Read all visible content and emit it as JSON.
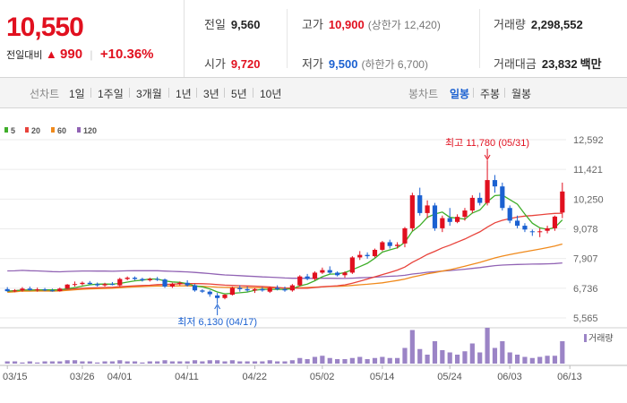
{
  "quote": {
    "price": "10,550",
    "change_label": "전일대비",
    "change_arrow": "▲",
    "change": "990",
    "change_pct": "+10.36%",
    "prev_label": "전일",
    "prev": "9,560",
    "open_label": "시가",
    "open": "9,720",
    "high_label": "고가",
    "high": "10,900",
    "upper_limit": "(상한가 12,420)",
    "low_label": "저가",
    "low": "9,500",
    "lower_limit": "(하한가 6,700)",
    "volume_label": "거래량",
    "volume": "2,298,552",
    "amount_label": "거래대금",
    "amount": "23,832",
    "amount_unit": "백만"
  },
  "tabs": {
    "line_chart": "선차트",
    "periods": [
      "1일",
      "1주일",
      "3개월",
      "1년",
      "3년",
      "5년",
      "10년"
    ],
    "candle_chart": "봉차트",
    "candle_periods": [
      "일봉",
      "주봉",
      "월봉"
    ],
    "active_candle_period": "일봉"
  },
  "colors": {
    "up": "#e1101f",
    "down": "#1b61d1",
    "ma5": "#3fae2a",
    "ma20": "#e8433b",
    "ma60": "#f08a1c",
    "ma120": "#9163b4",
    "volume": "#9b84c6"
  },
  "chart_data": {
    "type": "candlestick",
    "legend": [
      "5",
      "20",
      "60",
      "120"
    ],
    "ylim": [
      5565,
      12592
    ],
    "y_ticks": [
      "12,592",
      "11,421",
      "10,250",
      "9,078",
      "7,907",
      "6,736",
      "5,565"
    ],
    "x_ticks": [
      "03/15",
      "03/26",
      "04/01",
      "04/11",
      "04/22",
      "05/02",
      "05/14",
      "05/24",
      "06/03",
      "06/13"
    ],
    "x_tick_index": [
      0,
      10,
      15,
      24,
      33,
      42,
      50,
      59,
      67,
      75
    ],
    "annotations": {
      "high": {
        "text": "최고 11,780 (05/31)",
        "index": 64,
        "value": 11780
      },
      "low": {
        "text": "최저 6,130 (04/17)",
        "index": 28,
        "value": 6130
      }
    },
    "volume_label": "거래량",
    "candles": [
      [
        6700,
        6780,
        6600,
        6620
      ],
      [
        6620,
        6700,
        6580,
        6650
      ],
      [
        6650,
        6780,
        6600,
        6720
      ],
      [
        6720,
        6800,
        6640,
        6660
      ],
      [
        6660,
        6760,
        6600,
        6690
      ],
      [
        6690,
        6750,
        6620,
        6650
      ],
      [
        6650,
        6720,
        6600,
        6640
      ],
      [
        6620,
        6760,
        6600,
        6720
      ],
      [
        6720,
        6900,
        6700,
        6880
      ],
      [
        6880,
        7000,
        6800,
        6900
      ],
      [
        6900,
        7000,
        6850,
        6950
      ],
      [
        6950,
        7020,
        6880,
        6900
      ],
      [
        6900,
        6960,
        6800,
        6850
      ],
      [
        6850,
        6950,
        6800,
        6900
      ],
      [
        6900,
        6980,
        6850,
        6880
      ],
      [
        6850,
        7150,
        6800,
        7100
      ],
      [
        7100,
        7200,
        7050,
        7150
      ],
      [
        7150,
        7200,
        7050,
        7100
      ],
      [
        7100,
        7150,
        7000,
        7050
      ],
      [
        7050,
        7150,
        7000,
        7100
      ],
      [
        7100,
        7180,
        7020,
        7080
      ],
      [
        7080,
        7120,
        6750,
        6800
      ],
      [
        6800,
        6950,
        6750,
        6900
      ],
      [
        6900,
        7000,
        6850,
        6950
      ],
      [
        6950,
        7050,
        6800,
        6850
      ],
      [
        6850,
        6900,
        6600,
        6650
      ],
      [
        6650,
        6700,
        6550,
        6600
      ],
      [
        6600,
        6650,
        6400,
        6500
      ],
      [
        6450,
        6550,
        6130,
        6350
      ],
      [
        6350,
        6500,
        6300,
        6480
      ],
      [
        6480,
        6800,
        6450,
        6750
      ],
      [
        6750,
        6850,
        6600,
        6700
      ],
      [
        6700,
        6800,
        6600,
        6650
      ],
      [
        6650,
        6750,
        6550,
        6700
      ],
      [
        6700,
        6780,
        6600,
        6650
      ],
      [
        6600,
        6800,
        6550,
        6750
      ],
      [
        6750,
        6850,
        6650,
        6700
      ],
      [
        6700,
        6800,
        6600,
        6650
      ],
      [
        6650,
        6900,
        6600,
        6850
      ],
      [
        6850,
        7250,
        6800,
        7200
      ],
      [
        7200,
        7300,
        7050,
        7100
      ],
      [
        7100,
        7400,
        7050,
        7350
      ],
      [
        7350,
        7550,
        7300,
        7450
      ],
      [
        7450,
        7600,
        7300,
        7350
      ],
      [
        7350,
        7400,
        7200,
        7250
      ],
      [
        7250,
        7400,
        7150,
        7350
      ],
      [
        7350,
        8000,
        7300,
        7950
      ],
      [
        7950,
        8200,
        7850,
        8050
      ],
      [
        8050,
        8150,
        7900,
        8000
      ],
      [
        8000,
        8300,
        7950,
        8250
      ],
      [
        8250,
        8600,
        8200,
        8550
      ],
      [
        8550,
        8650,
        8300,
        8400
      ],
      [
        8400,
        8550,
        8300,
        8450
      ],
      [
        8500,
        9150,
        8350,
        9100
      ],
      [
        9100,
        10500,
        9000,
        10400
      ],
      [
        10400,
        10700,
        9600,
        9700
      ],
      [
        9700,
        10200,
        9500,
        10000
      ],
      [
        10000,
        10100,
        9000,
        9100
      ],
      [
        9100,
        9600,
        8950,
        9500
      ],
      [
        9500,
        9900,
        9200,
        9350
      ],
      [
        9350,
        9650,
        9300,
        9550
      ],
      [
        9550,
        9900,
        9400,
        9800
      ],
      [
        9800,
        10400,
        9700,
        10300
      ],
      [
        10300,
        10500,
        10000,
        10100
      ],
      [
        10100,
        11780,
        10000,
        11000
      ],
      [
        11000,
        11200,
        10500,
        10750
      ],
      [
        10750,
        10900,
        9800,
        9900
      ],
      [
        9900,
        10000,
        9300,
        9400
      ],
      [
        9400,
        9600,
        9100,
        9200
      ],
      [
        9200,
        9300,
        8950,
        9050
      ],
      [
        8980,
        9050,
        8800,
        8950
      ],
      [
        8950,
        9100,
        8750,
        8980
      ],
      [
        9000,
        9200,
        8900,
        9100
      ],
      [
        9100,
        9600,
        9000,
        9560
      ],
      [
        9720,
        10900,
        9500,
        10550
      ]
    ],
    "volume": [
      2,
      2,
      1,
      2,
      1,
      2,
      2,
      2,
      3,
      3,
      2,
      2,
      1,
      2,
      2,
      3,
      2,
      2,
      1,
      2,
      2,
      3,
      2,
      2,
      2,
      3,
      2,
      3,
      3,
      2,
      3,
      2,
      2,
      2,
      2,
      3,
      2,
      2,
      3,
      5,
      4,
      6,
      7,
      5,
      4,
      4,
      5,
      6,
      4,
      5,
      6,
      5,
      5,
      14,
      30,
      13,
      8,
      20,
      12,
      10,
      8,
      11,
      18,
      10,
      32,
      14,
      20,
      10,
      8,
      6,
      5,
      6,
      7,
      7,
      20
    ]
  }
}
